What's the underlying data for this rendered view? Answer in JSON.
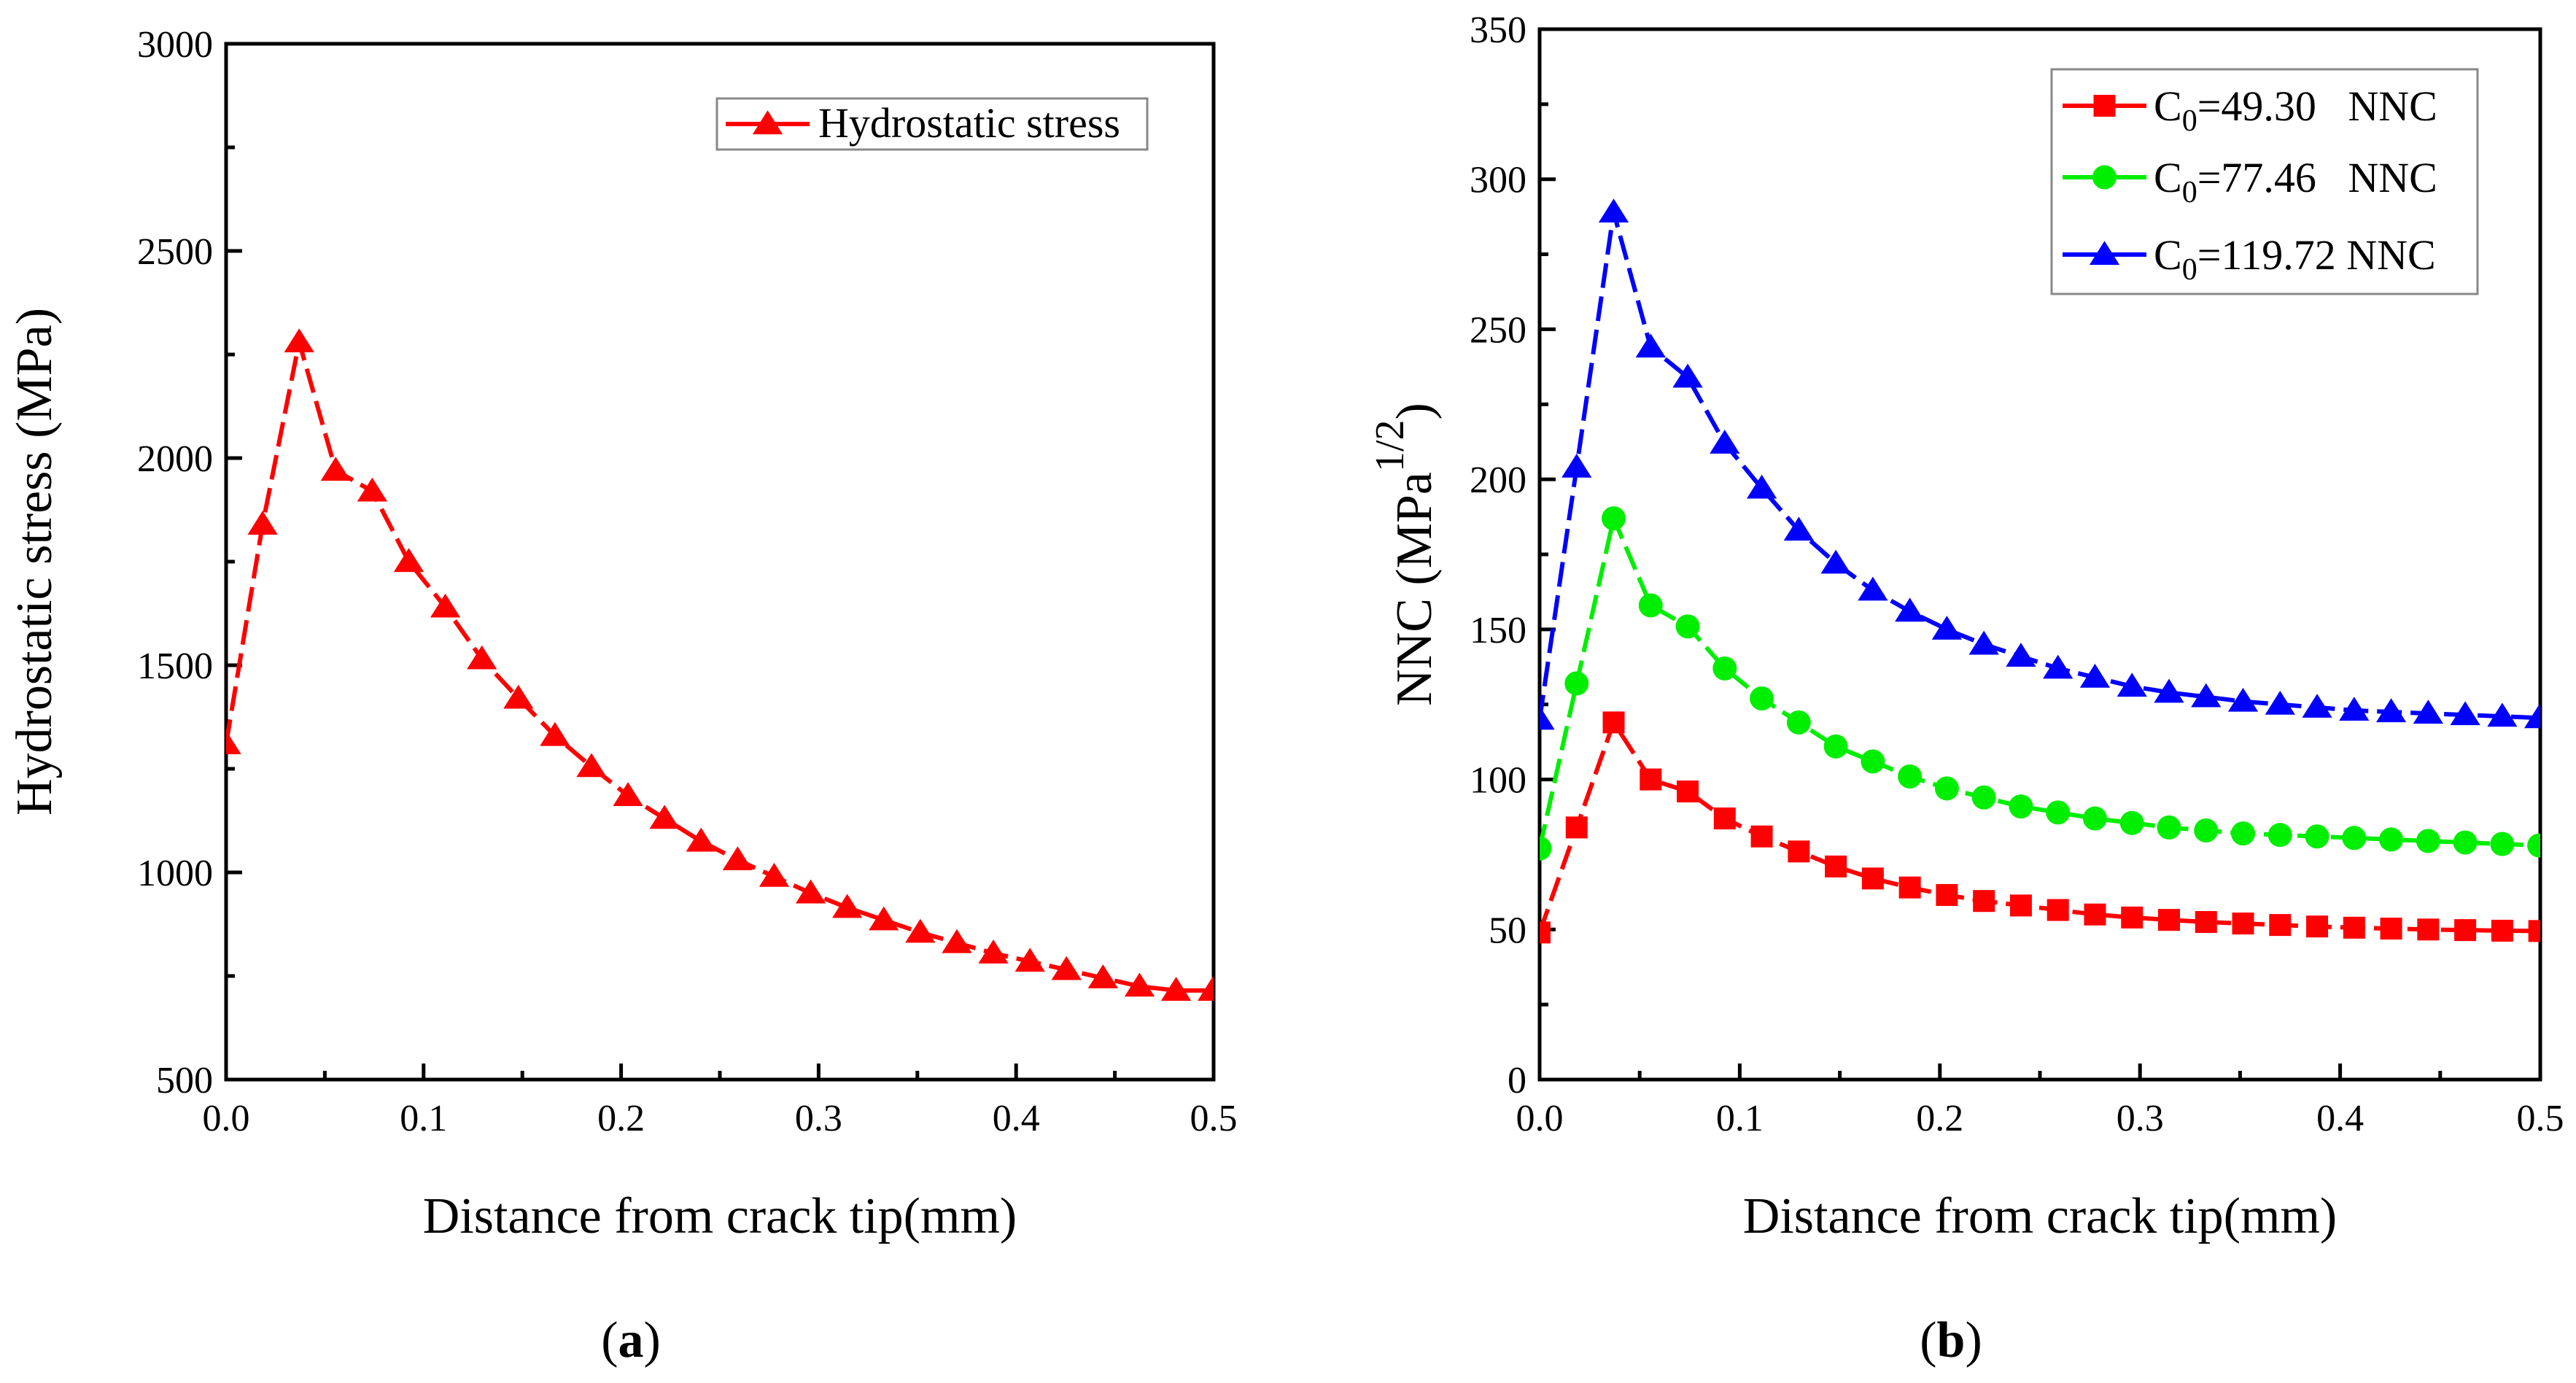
{
  "chart_data": [
    {
      "type": "line",
      "panel": "a",
      "caption_letter": "a",
      "xlabel": "Distance from crack tip(mm)",
      "ylabel": "Hydrostatic stress (MPa)",
      "xlim": [
        0,
        0.5
      ],
      "ylim": [
        500,
        3000
      ],
      "xticks": [
        0.0,
        0.1,
        0.2,
        0.3,
        0.4,
        0.5
      ],
      "xtick_labels": [
        "0.0",
        "0.1",
        "0.2",
        "0.3",
        "0.4",
        "0.5"
      ],
      "yticks": [
        500,
        1000,
        1500,
        2000,
        2500,
        3000
      ],
      "ytick_labels": [
        "500",
        "1000",
        "1500",
        "2000",
        "2500",
        "3000"
      ],
      "legend_position": "top-right",
      "series": [
        {
          "name": "Hydrostatic stress",
          "color": "#ff0000",
          "marker": "triangle",
          "x": [
            0.0,
            0.0185,
            0.037,
            0.0555,
            0.074,
            0.0925,
            0.111,
            0.1295,
            0.148,
            0.1665,
            0.185,
            0.2035,
            0.222,
            0.2405,
            0.259,
            0.2775,
            0.296,
            0.3145,
            0.333,
            0.3515,
            0.37,
            0.3885,
            0.407,
            0.4255,
            0.444,
            0.4625,
            0.481,
            0.4995
          ],
          "values": [
            1310,
            1840,
            2280,
            1970,
            1920,
            1750,
            1640,
            1515,
            1420,
            1330,
            1255,
            1185,
            1130,
            1075,
            1030,
            990,
            950,
            915,
            885,
            855,
            830,
            805,
            785,
            765,
            745,
            725,
            715,
            715
          ]
        }
      ]
    },
    {
      "type": "line",
      "panel": "b",
      "caption_letter": "b",
      "xlabel": "Distance from crack tip(mm)",
      "ylabel_main": "NNC (MPa",
      "ylabel_superscript": "1/2",
      "ylabel_close": ")",
      "xlim": [
        0,
        0.5
      ],
      "ylim": [
        0,
        350
      ],
      "xticks": [
        0.0,
        0.1,
        0.2,
        0.3,
        0.4,
        0.5
      ],
      "xtick_labels": [
        "0.0",
        "0.1",
        "0.2",
        "0.3",
        "0.4",
        "0.5"
      ],
      "yticks": [
        0,
        50,
        100,
        150,
        200,
        250,
        300,
        350
      ],
      "ytick_labels": [
        "0",
        "50",
        "100",
        "150",
        "200",
        "250",
        "300",
        "350"
      ],
      "legend_position": "top-right",
      "series": [
        {
          "name": "C0=49.30 NNC",
          "label_base": "C",
          "label_sub": "0",
          "label_rest": "=49.30   NNC",
          "color": "#ff0000",
          "marker": "square",
          "x": [
            0.0,
            0.0185,
            0.037,
            0.0555,
            0.074,
            0.0925,
            0.111,
            0.1295,
            0.148,
            0.1665,
            0.185,
            0.2035,
            0.222,
            0.2405,
            0.259,
            0.2775,
            0.296,
            0.3145,
            0.333,
            0.3515,
            0.37,
            0.3885,
            0.407,
            0.4255,
            0.444,
            0.4625,
            0.481,
            0.4995
          ],
          "values": [
            49,
            84,
            119,
            100,
            96,
            87,
            81,
            76,
            71,
            67,
            64,
            61.5,
            59.5,
            58,
            56.5,
            55,
            54,
            53.2,
            52.5,
            52,
            51.5,
            51,
            50.6,
            50.3,
            50,
            49.8,
            49.6,
            49.5
          ]
        },
        {
          "name": "C0=77.46 NNC",
          "label_base": "C",
          "label_sub": "0",
          "label_rest": "=77.46   NNC",
          "color": "#00ee00",
          "marker": "circle",
          "x": [
            0.0,
            0.0185,
            0.037,
            0.0555,
            0.074,
            0.0925,
            0.111,
            0.1295,
            0.148,
            0.1665,
            0.185,
            0.2035,
            0.222,
            0.2405,
            0.259,
            0.2775,
            0.296,
            0.3145,
            0.333,
            0.3515,
            0.37,
            0.3885,
            0.407,
            0.4255,
            0.444,
            0.4625,
            0.481,
            0.4995
          ],
          "values": [
            77,
            132,
            187,
            158,
            151,
            137,
            127,
            119,
            111,
            106,
            101,
            97,
            94,
            91,
            89,
            87,
            85.5,
            84,
            83,
            82,
            81.5,
            81,
            80.5,
            80,
            79.5,
            79,
            78.5,
            78
          ]
        },
        {
          "name": "C0=119.72 NNC",
          "label_base": "C",
          "label_sub": "0",
          "label_rest": "=119.72 NNC",
          "color": "#0000ff",
          "marker": "triangle",
          "x": [
            0.0,
            0.0185,
            0.037,
            0.0555,
            0.074,
            0.0925,
            0.111,
            0.1295,
            0.148,
            0.1665,
            0.185,
            0.2035,
            0.222,
            0.2405,
            0.259,
            0.2775,
            0.296,
            0.3145,
            0.333,
            0.3515,
            0.37,
            0.3885,
            0.407,
            0.4255,
            0.444,
            0.4625,
            0.481,
            0.4995
          ],
          "values": [
            120,
            204,
            289,
            244,
            234,
            212,
            197,
            183,
            172,
            163,
            156,
            150,
            145,
            141,
            137,
            134,
            131,
            129,
            127.5,
            126,
            125,
            124,
            123,
            122.5,
            122,
            121.5,
            121,
            120.5
          ]
        }
      ]
    }
  ]
}
